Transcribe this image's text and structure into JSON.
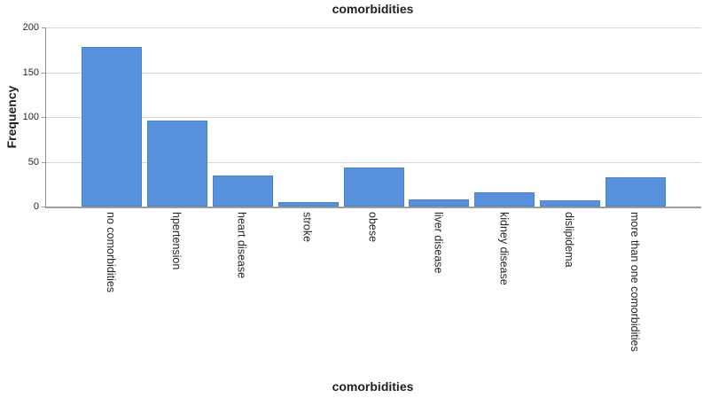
{
  "chart_data": {
    "type": "bar",
    "title": "comorbidities",
    "xlabel": "comorbidities",
    "ylabel": "Frequency",
    "categories": [
      "no comorbidities",
      "hpertension",
      "heart disease",
      "stroke",
      "obese",
      "liver disease",
      "kidney disease",
      "dislipidema",
      "more than one comorbidities"
    ],
    "values": [
      178,
      96,
      35,
      5,
      44,
      8,
      16,
      7,
      33
    ],
    "ylim": [
      0,
      200
    ],
    "yticks": [
      0,
      50,
      100,
      150,
      200
    ],
    "grid": true,
    "legend_visible": false,
    "colors": {
      "bar_fill": "#5791DB",
      "bar_border": "#4A82CB",
      "gridline": "#D6D6D6",
      "axis_line": "#9E9E9E",
      "text": "#1F1F1F"
    }
  }
}
